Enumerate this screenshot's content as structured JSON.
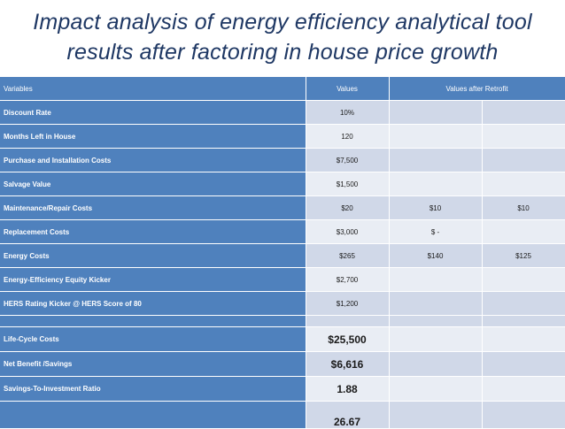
{
  "title": {
    "line1": "Impact analysis of energy efficiency analytical tool",
    "line2": "results after factoring in house price growth"
  },
  "table": {
    "headers": {
      "variables": "Variables",
      "values": "Values",
      "after_retrofit": "Values after Retrofit"
    },
    "rows": [
      {
        "label": "Discount Rate",
        "value": "10%",
        "retrofit_a": "",
        "retrofit_b": ""
      },
      {
        "label": "Months Left in House",
        "value": "120",
        "retrofit_a": "",
        "retrofit_b": ""
      },
      {
        "label": "Purchase and Installation Costs",
        "value": "$7,500",
        "retrofit_a": "",
        "retrofit_b": ""
      },
      {
        "label": "Salvage Value",
        "value": "$1,500",
        "retrofit_a": "",
        "retrofit_b": ""
      },
      {
        "label": "Maintenance/Repair Costs",
        "value": "$20",
        "retrofit_a": "$10",
        "retrofit_b": "$10"
      },
      {
        "label": "Replacement Costs",
        "value": "$3,000",
        "retrofit_a": "$ -",
        "retrofit_b": ""
      },
      {
        "label": "Energy Costs",
        "value": "$265",
        "retrofit_a": "$140",
        "retrofit_b": "$125"
      },
      {
        "label": "Energy-Efficiency Equity Kicker",
        "value": "$2,700",
        "retrofit_a": "",
        "retrofit_b": ""
      },
      {
        "label": "HERS Rating Kicker @ HERS Score of 80",
        "value": "$1,200",
        "retrofit_a": "",
        "retrofit_b": ""
      }
    ],
    "summary": [
      {
        "label": "Life-Cycle Costs",
        "value": "$25,500"
      },
      {
        "label": "Net Benefit /Savings",
        "value": "$6,616"
      },
      {
        "label": "Savings-To-Investment Ratio",
        "value": "1.88"
      },
      {
        "label": "",
        "value": "26.67"
      }
    ]
  }
}
